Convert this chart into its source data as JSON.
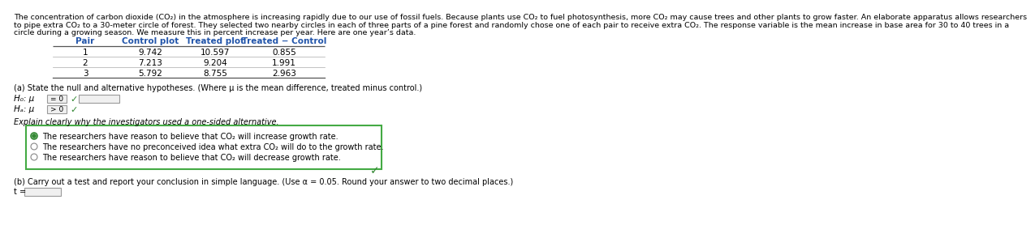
{
  "bg_color": "#ffffff",
  "para_lines": [
    "The concentration of carbon dioxide (CO₂) in the atmosphere is increasing rapidly due to our use of fossil fuels. Because plants use CO₂ to fuel photosynthesis, more CO₂ may cause trees and other plants to grow faster. An elaborate apparatus allows researchers",
    "to pipe extra CO₂ to a 30-meter circle of forest. They selected two nearby circles in each of three parts of a pine forest and randomly chose one of each pair to receive extra CO₂. The response variable is the mean increase in base area for 30 to 40 trees in a",
    "circle during a growing season. We measure this in percent increase per year. Here are one year’s data."
  ],
  "table_headers": [
    "Pair",
    "Control plot",
    "Treated plot",
    "Treated − Control"
  ],
  "table_data": [
    [
      "1",
      "9.742",
      "10.597",
      "0.855"
    ],
    [
      "2",
      "7.213",
      "9.204",
      "1.991"
    ],
    [
      "3",
      "5.792",
      "8.755",
      "2.963"
    ]
  ],
  "part_a_label": "(a) State the null and alternative hypotheses. (Where μ is the mean difference, treated minus control.)",
  "h0_prefix": "H₀: μ",
  "ha_prefix": "Hₐ: μ",
  "h0_box_text": "= 0",
  "ha_box_text": "> 0",
  "explain_label": "Explain clearly why the investigators used a one-sided alternative.",
  "radio_options": [
    "The researchers have reason to believe that CO₂ will increase growth rate.",
    "The researchers have no preconceived idea what extra CO₂ will do to the growth rate.",
    "The researchers have reason to believe that CO₂ will decrease growth rate."
  ],
  "selected_radio": 0,
  "part_b_label": "(b) Carry out a test and report your conclusion in simple language. (Use α = 0.05. Round your answer to two decimal places.)",
  "t_label": "t =",
  "text_color": "#000000",
  "table_header_color": "#2255aa",
  "green_color": "#338833",
  "gray_color": "#888888",
  "input_bg": "#f0f0f0",
  "input_border": "#999999",
  "box_border_green": "#44aa44",
  "para_fontsize": 6.8,
  "table_header_fontsize": 7.5,
  "table_data_fontsize": 7.5,
  "label_fontsize": 7.0,
  "hyp_fontsize": 7.5,
  "radio_fontsize": 7.0,
  "partb_fontsize": 7.0
}
